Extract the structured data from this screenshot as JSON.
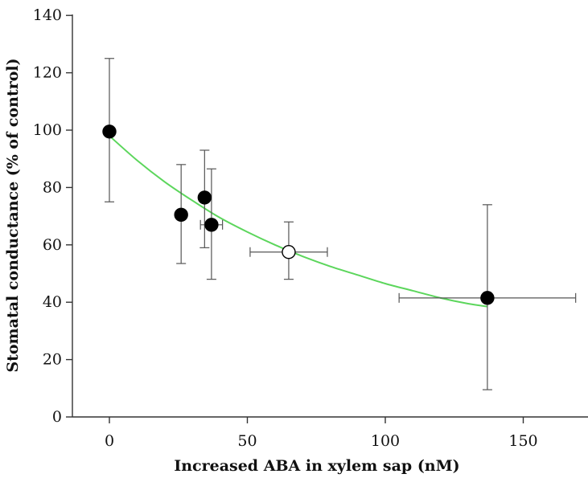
{
  "chart_data": {
    "type": "scatter",
    "xlabel": "Increased ABA in xylem sap (nM)",
    "ylabel": "Stomatal conductance (% of control)",
    "xlim": [
      -13,
      170
    ],
    "ylim": [
      0,
      140
    ],
    "xticks": [
      0,
      50,
      100,
      150
    ],
    "yticks": [
      0,
      20,
      40,
      60,
      80,
      100,
      120,
      140
    ],
    "grid": false,
    "points": [
      {
        "x": 0,
        "y": 99.5,
        "ylow": 75,
        "yhigh": 125,
        "filled": true
      },
      {
        "x": 26,
        "y": 70.5,
        "ylow": 53.5,
        "yhigh": 88,
        "filled": true
      },
      {
        "x": 34.5,
        "y": 76.5,
        "ylow": 59,
        "yhigh": 93,
        "filled": true
      },
      {
        "x": 37,
        "y": 67,
        "ylow": 48,
        "yhigh": 86.5,
        "xlow": 33,
        "xhigh": 41,
        "filled": true
      },
      {
        "x": 65,
        "y": 57.5,
        "ylow": 48,
        "yhigh": 68,
        "xlow": 51,
        "xhigh": 79,
        "filled": false
      },
      {
        "x": 137,
        "y": 41.5,
        "ylow": 9.5,
        "yhigh": 74,
        "xlow": 105,
        "xhigh": 169,
        "filled": true
      }
    ],
    "fit_curve": {
      "color": "#5cd65c",
      "x": [
        0,
        10,
        20,
        30,
        40,
        50,
        60,
        70,
        80,
        90,
        100,
        110,
        120,
        130,
        137
      ],
      "y": [
        98,
        89.5,
        82,
        75.5,
        69.5,
        64.5,
        60,
        56,
        52.5,
        49.5,
        46.5,
        44,
        41.5,
        39.5,
        38.5
      ]
    }
  }
}
